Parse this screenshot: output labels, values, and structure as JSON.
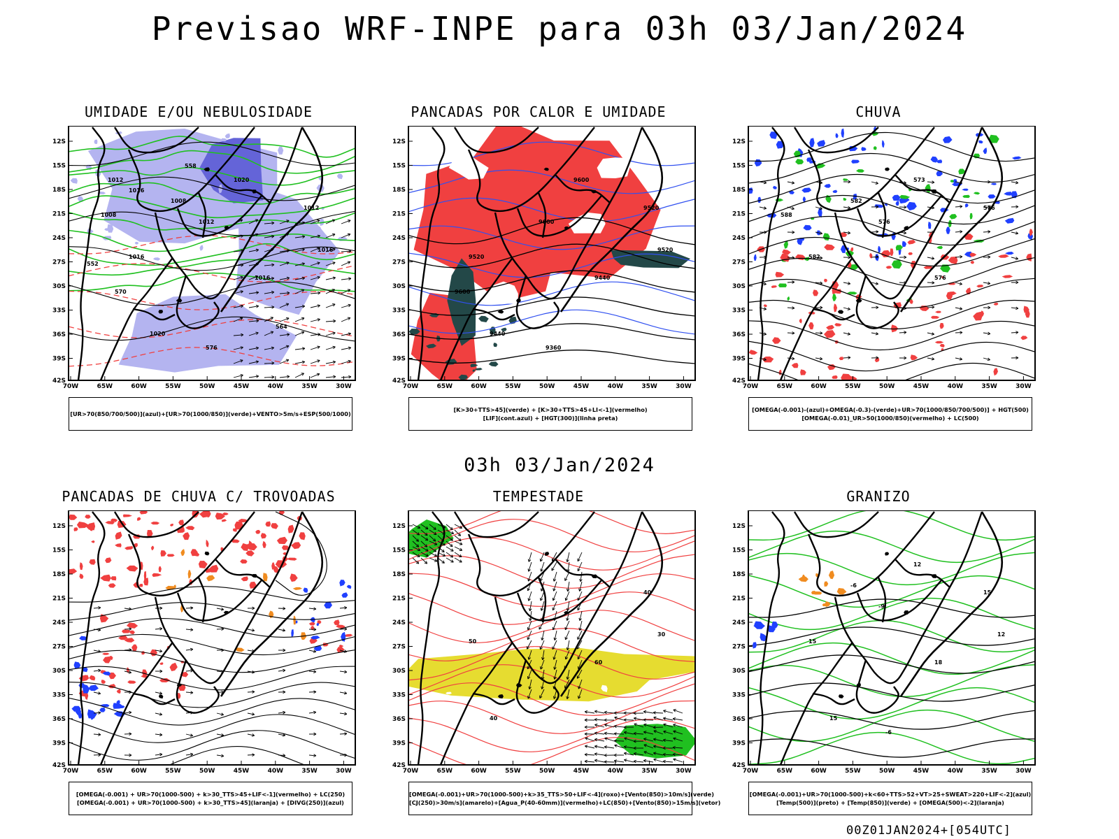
{
  "title": "Previsao WRF-INPE  para 03h 03/Jan/2024",
  "mid_time": "03h 03/Jan/2024",
  "footer": "00Z01JAN2024+[054UTC]",
  "lat_labels": [
    "12S",
    "15S",
    "18S",
    "21S",
    "24S",
    "27S",
    "30S",
    "33S",
    "36S",
    "39S",
    "42S"
  ],
  "lon_labels": [
    "70W",
    "65W",
    "60W",
    "55W",
    "50W",
    "45W",
    "40W",
    "35W",
    "30W"
  ],
  "colors": {
    "blue": "#2040ff",
    "lavender": "#b4b4f0",
    "green": "#20c020",
    "red": "#f04040",
    "darkteal": "#234848",
    "yellow": "#e6dc30",
    "orange": "#f08c20",
    "purple": "#6464d8"
  },
  "panels": [
    {
      "title": "UMIDADE E/OU NEBULOSIDADE",
      "legend": [
        "[UR>70(850/700/500)](azul)+[UR>70(1000/850)](verde)+VENTO>5m/s+ESP(500/1000)"
      ],
      "labels": [
        "1012",
        "1016",
        "1008",
        "1008",
        "1012",
        "1020",
        "1012",
        "1016",
        "1016",
        "1020",
        "1016",
        "576",
        "570",
        "564",
        "558",
        "552"
      ]
    },
    {
      "title": "PANCADAS POR CALOR E UMIDADE",
      "legend": [
        "[K>30+TTS>45](verde) + [K>30+TTS>45+LI<-1](vermelho)",
        "[LIF](cont.azul) + [HGT(300)](linha preta)"
      ],
      "labels": [
        "9600",
        "9600",
        "9520",
        "9520",
        "9440",
        "9440",
        "9520",
        "9360",
        "9600"
      ]
    },
    {
      "title": "CHUVA",
      "legend": [
        "[OMEGA(-0.001)-(azul)+OMEGA(-0.3)-(verde)+UR>70(1000/850/700/500)] + HGT(500)",
        "[OMEGA(-0.01)_UR>50(1000/850)(vermelho) + LC(500)"
      ],
      "labels": [
        "588",
        "582",
        "576",
        "573",
        "576",
        "582",
        "576"
      ]
    },
    {
      "title": "PANCADAS DE CHUVA C/ TROVOADAS",
      "legend": [
        "[OMEGA(-0.001) + UR>70(1000-500) + k>30_TTS>45+LIF<-1](vermelho) + LC(250)",
        "[OMEGA(-0.001) + UR>70(1000-500) + k>30_TTS>45](laranja) + [DIVG(250)](azul)"
      ],
      "labels": []
    },
    {
      "title": "TEMPESTADE",
      "legend": [
        "[OMEGA(-0.001)+UR>70(1000-500)+k>35_TTS>50+LIF<-4](roxo)+[Vento(850)>10m/s](verde)",
        "[CJ(250)>30m/s](amarelo)+[Agua_P(40-60mm)](vermelho)+LC(850)+[Vento(850)>15m/s](vetor)"
      ],
      "labels": [
        "40",
        "50",
        "60",
        "40",
        "30"
      ]
    },
    {
      "title": "GRANIZO",
      "legend": [
        "[OMEGA(-0.001)+UR>70(1000-500)+k<60+TTS>52+VT>25+SWEAT>220+LIF<-2](azul)",
        "[Temp(500)](preto) + [Temp(850)](verde) + [OMEGA(500)<-2](laranja)"
      ],
      "labels": [
        "-6",
        "-9",
        "12",
        "15",
        "15",
        "18",
        "15",
        "12",
        "-6"
      ]
    }
  ]
}
